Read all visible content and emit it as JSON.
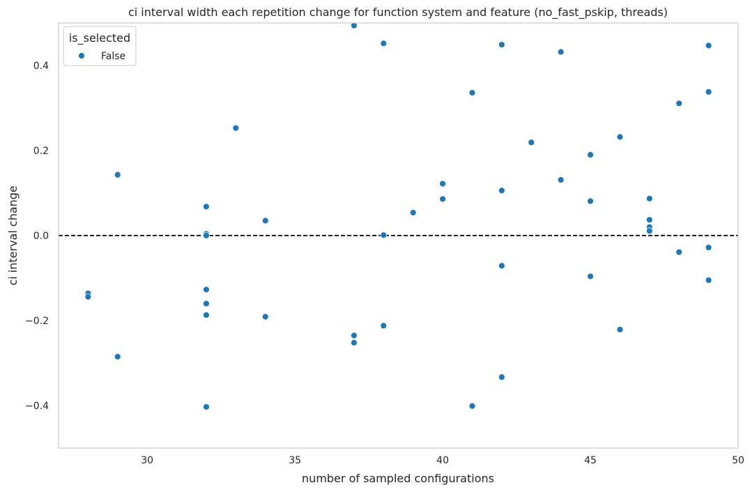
{
  "chart_data": {
    "type": "scatter",
    "title": "ci interval width each repetition change for function system and feature (no_fast_pskip, threads)",
    "xlabel": "number of sampled configurations",
    "ylabel": "ci interval change",
    "xlim": [
      27,
      50
    ],
    "ylim": [
      -0.5,
      0.5
    ],
    "xticks": [
      30,
      35,
      40,
      45,
      50
    ],
    "yticks": [
      -0.4,
      -0.2,
      0.0,
      0.2,
      0.4
    ],
    "xtick_labels": [
      "30",
      "35",
      "40",
      "45",
      "50"
    ],
    "ytick_labels": [
      "−0.4",
      "−0.2",
      "0.0",
      "0.2",
      "0.4"
    ],
    "grid": false,
    "reference_line": {
      "y": 0.0,
      "style": "dashed",
      "color": "#000000"
    },
    "legend": {
      "title": "is_selected",
      "placement": "top-left",
      "entries": [
        "False"
      ]
    },
    "series": [
      {
        "name": "False",
        "color": "#1f77b4",
        "points": [
          [
            28,
            -0.136
          ],
          [
            28,
            -0.144
          ],
          [
            29,
            0.143
          ],
          [
            29,
            -0.285
          ],
          [
            32,
            0.068
          ],
          [
            32,
            0.004
          ],
          [
            32,
            0.0
          ],
          [
            32,
            -0.127
          ],
          [
            32,
            -0.16
          ],
          [
            32,
            -0.187
          ],
          [
            32,
            -0.403
          ],
          [
            33,
            0.253
          ],
          [
            34,
            0.035
          ],
          [
            34,
            -0.191
          ],
          [
            37,
            0.494
          ],
          [
            37,
            -0.235
          ],
          [
            37,
            -0.252
          ],
          [
            38,
            0.452
          ],
          [
            38,
            0.001
          ],
          [
            38,
            -0.212
          ],
          [
            39,
            0.054
          ],
          [
            40,
            0.122
          ],
          [
            40,
            0.086
          ],
          [
            41,
            0.336
          ],
          [
            41,
            -0.401
          ],
          [
            42,
            0.449
          ],
          [
            42,
            0.106
          ],
          [
            42,
            -0.071
          ],
          [
            42,
            -0.333
          ],
          [
            43,
            0.219
          ],
          [
            44,
            0.432
          ],
          [
            44,
            0.131
          ],
          [
            45,
            0.19
          ],
          [
            45,
            0.081
          ],
          [
            45,
            -0.096
          ],
          [
            46,
            0.232
          ],
          [
            46,
            -0.221
          ],
          [
            47,
            0.087
          ],
          [
            47,
            0.037
          ],
          [
            47,
            0.02
          ],
          [
            47,
            0.011
          ],
          [
            48,
            0.311
          ],
          [
            48,
            -0.039
          ],
          [
            49,
            0.447
          ],
          [
            49,
            0.338
          ],
          [
            49,
            -0.028
          ],
          [
            49,
            -0.105
          ]
        ]
      }
    ]
  }
}
